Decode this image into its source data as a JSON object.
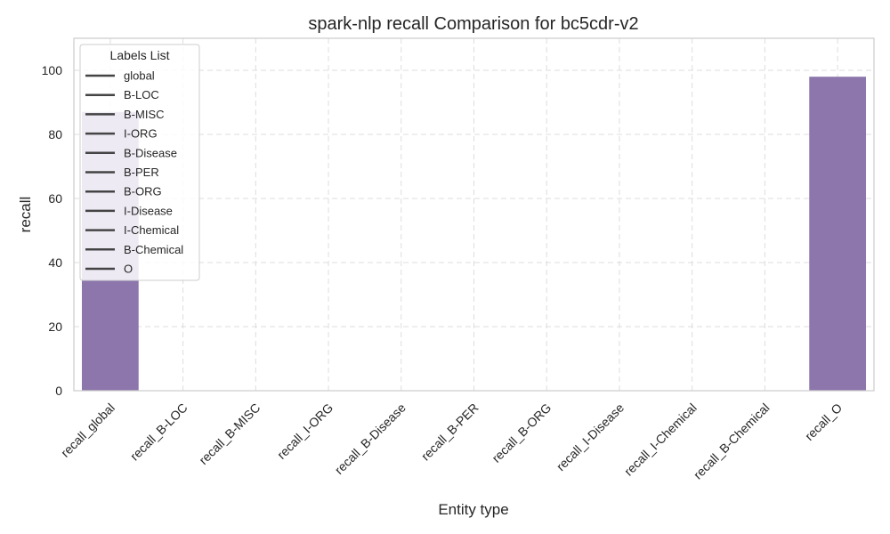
{
  "chart_data": {
    "type": "bar",
    "title": "spark-nlp  recall Comparison for bc5cdr-v2",
    "xlabel": "Entity type",
    "ylabel": "recall",
    "categories": [
      "recall_global",
      "recall_B-LOC",
      "recall_B-MISC",
      "recall_I-ORG",
      "recall_B-Disease",
      "recall_B-PER",
      "recall_B-ORG",
      "recall_I-Disease",
      "recall_I-Chemical",
      "recall_B-Chemical",
      "recall_O"
    ],
    "values": [
      87,
      0,
      0,
      0,
      0,
      0,
      0,
      0,
      0,
      0,
      98
    ],
    "ylim": [
      0,
      110
    ],
    "yticks": [
      0,
      20,
      40,
      60,
      80,
      100
    ],
    "grid": true,
    "bar_color": "#8c76ab",
    "legend": {
      "title": "Labels List",
      "placement": "top-left",
      "line_color": "#444444",
      "entries": [
        "global",
        "B-LOC",
        "B-MISC",
        "I-ORG",
        "B-Disease",
        "B-PER",
        "B-ORG",
        "I-Disease",
        "I-Chemical",
        "B-Chemical",
        "O"
      ]
    }
  }
}
